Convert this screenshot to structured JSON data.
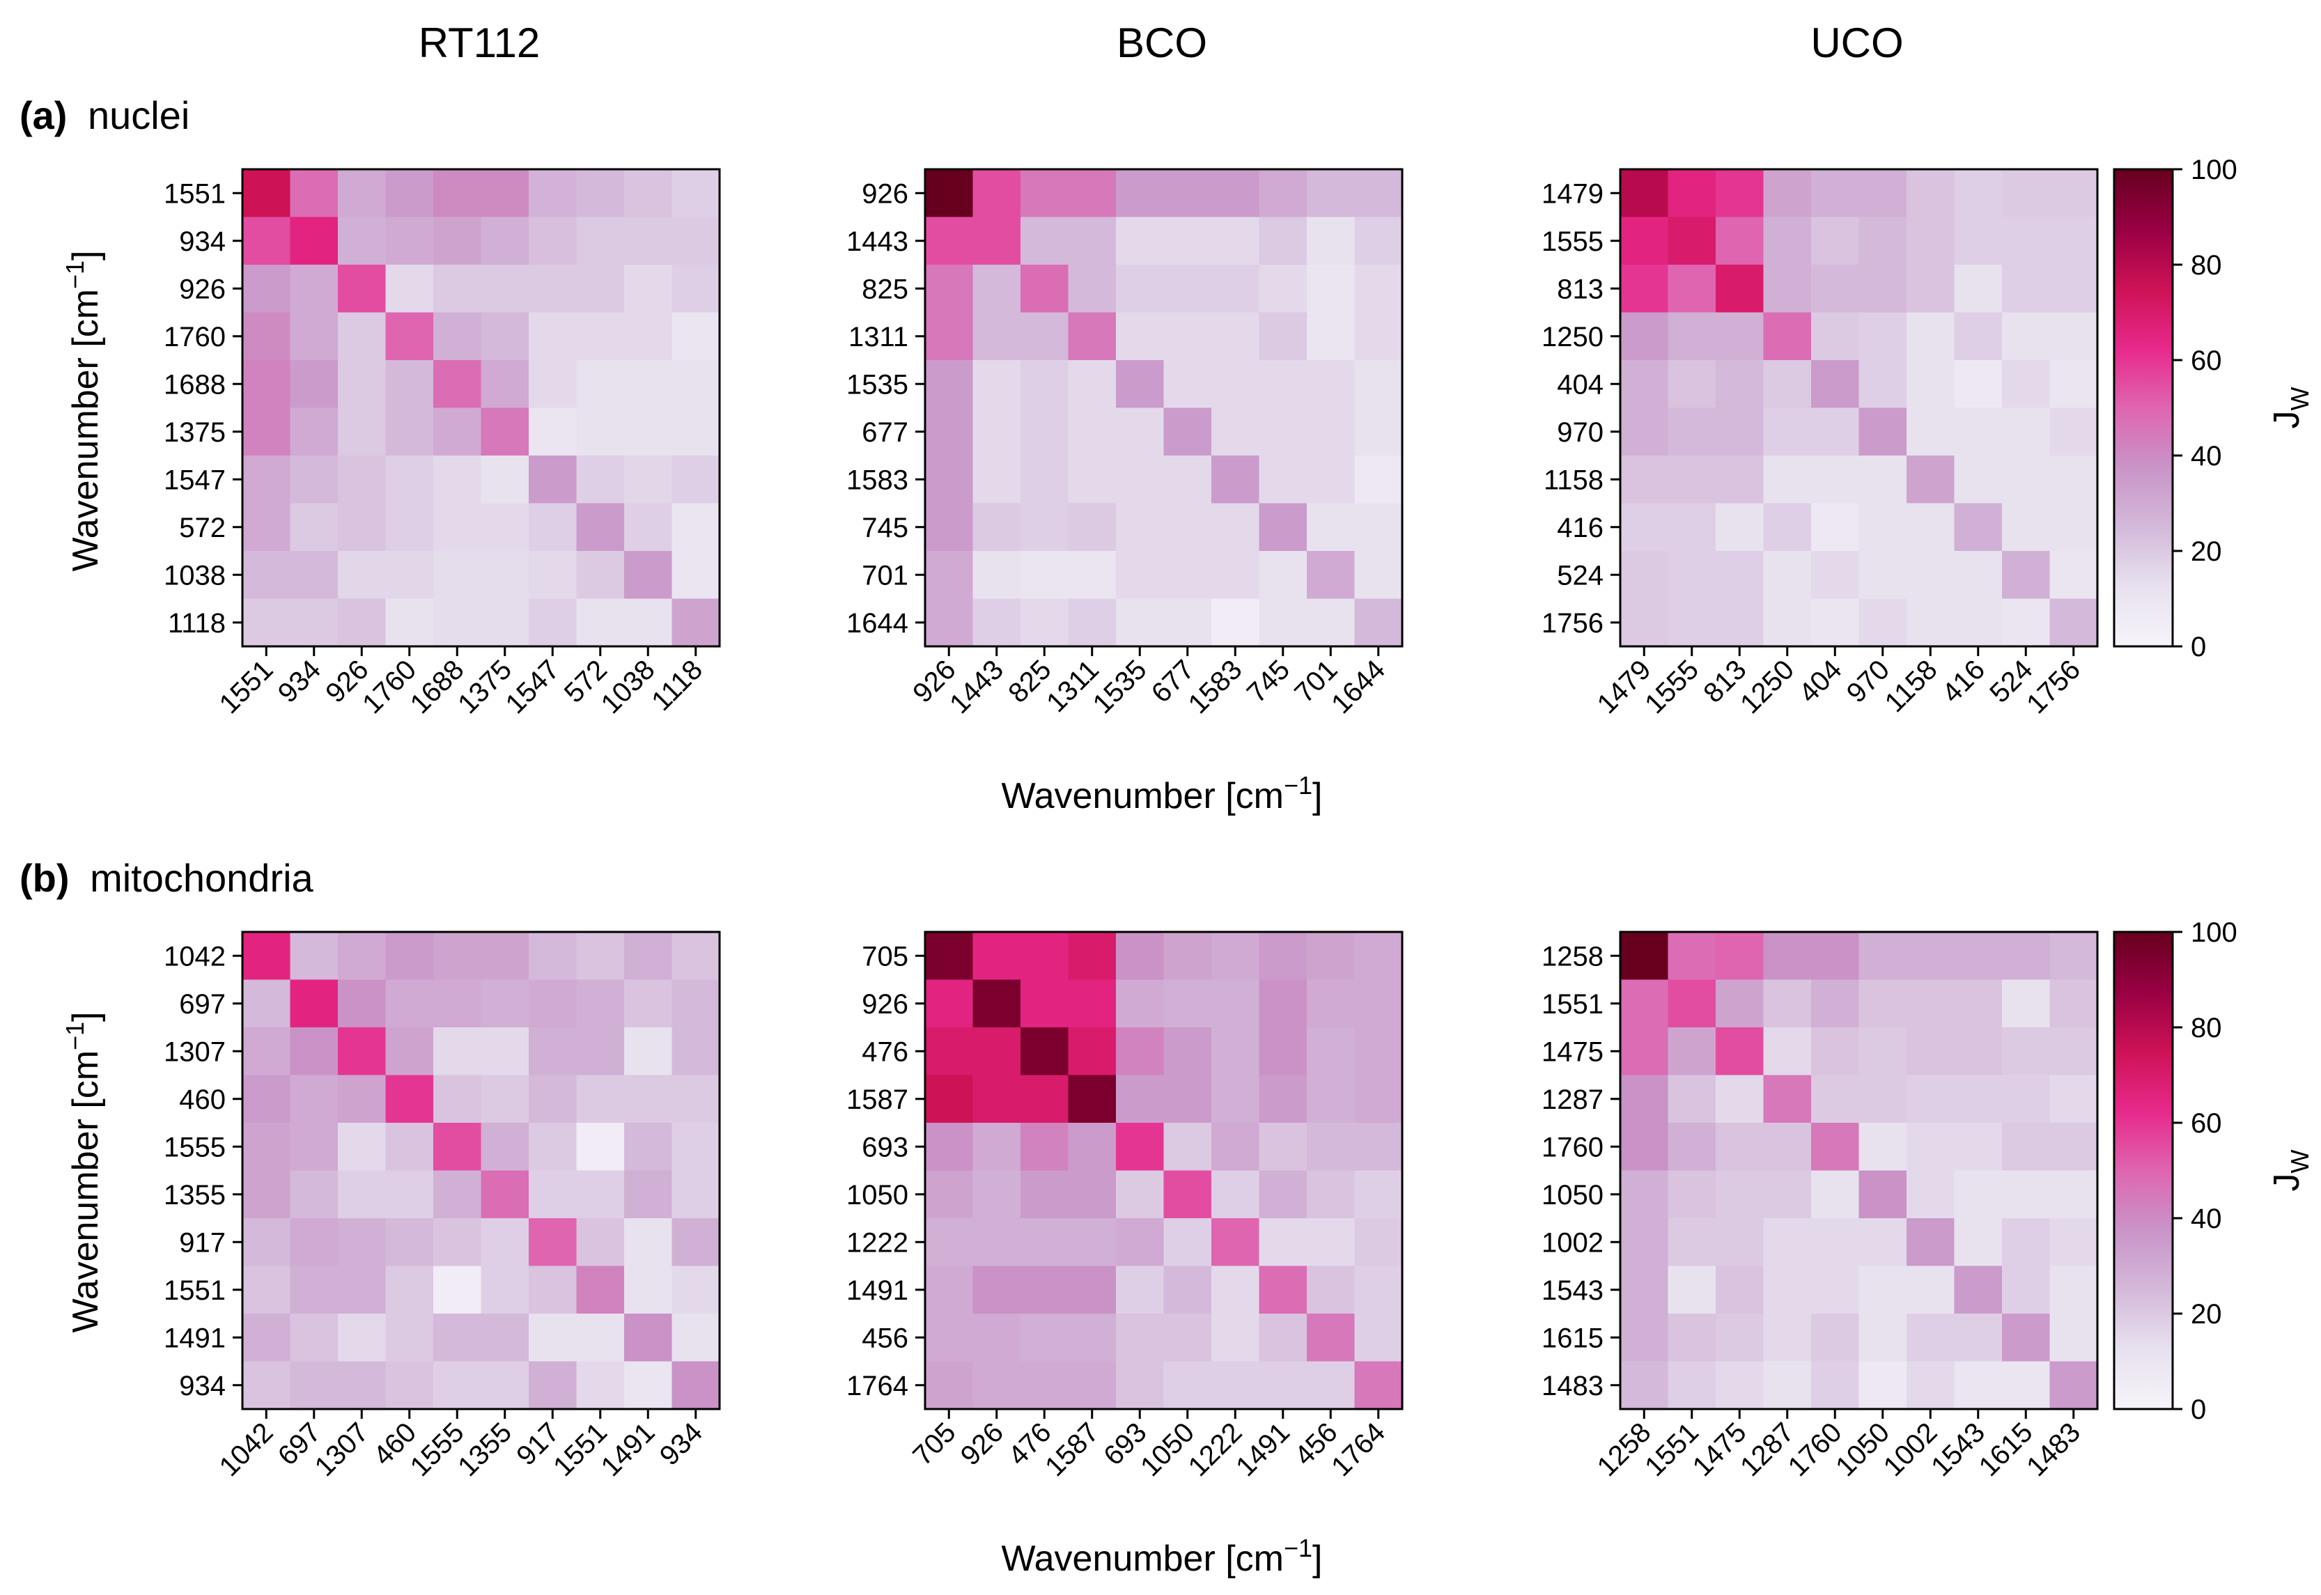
{
  "figure": {
    "column_titles": [
      "RT112",
      "BCO",
      "UCO"
    ],
    "row_titles": [
      {
        "letter": "(a)",
        "text": "nuclei"
      },
      {
        "letter": "(b)",
        "text": "mitochondria"
      }
    ],
    "axis_label_main": "Wavenumber [cm",
    "axis_label_sup": "−1",
    "axis_label_end": "]",
    "colorbar_label": "J",
    "colorbar_label_sub": "W",
    "colorbar_ticks": [
      "0",
      "20",
      "40",
      "60",
      "80",
      "100"
    ],
    "colors": {
      "low": "#f7f4f9",
      "mid1": "#d4b9da",
      "mid2": "#df65b0",
      "mid3": "#e7298a",
      "high": "#67001f"
    }
  },
  "chart_data": [
    {
      "type": "heatmap",
      "panel": "a",
      "title": "RT112",
      "xlabel": "",
      "ylabel": "Wavenumber [cm−1]",
      "vmin": 0,
      "vmax": 100,
      "labels": [
        "1551",
        "934",
        "926",
        "1760",
        "1688",
        "1375",
        "1547",
        "572",
        "1038",
        "1118"
      ],
      "values": [
        [
          75,
          48,
          30,
          35,
          40,
          40,
          27,
          25,
          22,
          18
        ],
        [
          55,
          65,
          28,
          30,
          32,
          28,
          23,
          20,
          20,
          20
        ],
        [
          35,
          30,
          55,
          15,
          20,
          20,
          20,
          20,
          15,
          18
        ],
        [
          40,
          30,
          20,
          50,
          28,
          25,
          15,
          15,
          15,
          10
        ],
        [
          42,
          35,
          20,
          25,
          48,
          30,
          15,
          12,
          12,
          12
        ],
        [
          42,
          30,
          20,
          25,
          30,
          45,
          10,
          12,
          12,
          12
        ],
        [
          30,
          25,
          22,
          18,
          15,
          12,
          35,
          18,
          16,
          18
        ],
        [
          30,
          20,
          22,
          18,
          15,
          15,
          18,
          35,
          18,
          10
        ],
        [
          25,
          25,
          16,
          16,
          14,
          14,
          15,
          20,
          35,
          10
        ],
        [
          20,
          20,
          22,
          12,
          14,
          14,
          18,
          12,
          12,
          32
        ]
      ]
    },
    {
      "type": "heatmap",
      "panel": "a",
      "title": "BCO",
      "xlabel": "Wavenumber [cm−1]",
      "ylabel": "",
      "vmin": 0,
      "vmax": 100,
      "labels": [
        "926",
        "1443",
        "825",
        "1311",
        "1535",
        "677",
        "1583",
        "745",
        "701",
        "1644"
      ],
      "values": [
        [
          100,
          55,
          45,
          45,
          35,
          35,
          35,
          30,
          25,
          25
        ],
        [
          55,
          55,
          25,
          25,
          15,
          15,
          15,
          20,
          12,
          18
        ],
        [
          45,
          25,
          48,
          25,
          18,
          18,
          18,
          15,
          10,
          15
        ],
        [
          45,
          25,
          25,
          45,
          15,
          15,
          15,
          20,
          10,
          15
        ],
        [
          35,
          15,
          18,
          15,
          35,
          15,
          15,
          15,
          15,
          12
        ],
        [
          35,
          15,
          18,
          15,
          15,
          35,
          15,
          15,
          15,
          12
        ],
        [
          35,
          15,
          18,
          15,
          15,
          15,
          35,
          15,
          15,
          8
        ],
        [
          35,
          20,
          18,
          20,
          15,
          15,
          15,
          35,
          12,
          12
        ],
        [
          30,
          12,
          10,
          10,
          15,
          15,
          15,
          12,
          30,
          12
        ],
        [
          30,
          18,
          15,
          18,
          12,
          12,
          5,
          12,
          12,
          25
        ]
      ]
    },
    {
      "type": "heatmap",
      "panel": "a",
      "title": "UCO",
      "xlabel": "",
      "ylabel": "",
      "vmin": 0,
      "vmax": 100,
      "labels": [
        "1479",
        "1555",
        "813",
        "1250",
        "404",
        "970",
        "1158",
        "416",
        "524",
        "1756"
      ],
      "values": [
        [
          80,
          65,
          60,
          32,
          28,
          28,
          22,
          18,
          20,
          20
        ],
        [
          65,
          70,
          50,
          28,
          22,
          25,
          22,
          18,
          18,
          18
        ],
        [
          60,
          50,
          70,
          28,
          25,
          25,
          22,
          12,
          18,
          18
        ],
        [
          35,
          28,
          28,
          48,
          20,
          18,
          12,
          18,
          12,
          12
        ],
        [
          28,
          22,
          25,
          20,
          35,
          18,
          12,
          8,
          15,
          10
        ],
        [
          28,
          25,
          25,
          18,
          18,
          35,
          12,
          12,
          12,
          15
        ],
        [
          22,
          22,
          22,
          12,
          12,
          12,
          32,
          12,
          12,
          12
        ],
        [
          18,
          18,
          12,
          18,
          8,
          12,
          12,
          28,
          12,
          12
        ],
        [
          20,
          18,
          18,
          12,
          15,
          12,
          12,
          12,
          28,
          10
        ],
        [
          20,
          18,
          18,
          12,
          10,
          15,
          12,
          12,
          10,
          25
        ]
      ]
    },
    {
      "type": "heatmap",
      "panel": "b",
      "title": "RT112",
      "xlabel": "",
      "ylabel": "Wavenumber [cm−1]",
      "vmin": 0,
      "vmax": 100,
      "labels": [
        "1042",
        "697",
        "1307",
        "460",
        "1555",
        "1355",
        "917",
        "1551",
        "1491",
        "934"
      ],
      "values": [
        [
          65,
          25,
          30,
          35,
          32,
          32,
          25,
          22,
          28,
          22
        ],
        [
          25,
          65,
          38,
          30,
          30,
          28,
          30,
          28,
          22,
          25
        ],
        [
          30,
          38,
          60,
          32,
          15,
          15,
          28,
          28,
          12,
          25
        ],
        [
          35,
          30,
          32,
          60,
          22,
          20,
          25,
          20,
          20,
          20
        ],
        [
          32,
          30,
          15,
          22,
          55,
          28,
          20,
          5,
          25,
          18
        ],
        [
          32,
          25,
          18,
          18,
          28,
          48,
          18,
          18,
          28,
          18
        ],
        [
          25,
          30,
          28,
          25,
          22,
          18,
          50,
          22,
          12,
          28
        ],
        [
          22,
          28,
          28,
          20,
          5,
          18,
          22,
          42,
          12,
          15
        ],
        [
          28,
          22,
          15,
          20,
          25,
          25,
          12,
          12,
          38,
          12
        ],
        [
          22,
          25,
          25,
          22,
          18,
          18,
          28,
          15,
          10,
          38
        ]
      ]
    },
    {
      "type": "heatmap",
      "panel": "b",
      "title": "BCO",
      "xlabel": "Wavenumber [cm−1]",
      "ylabel": "",
      "vmin": 0,
      "vmax": 100,
      "labels": [
        "705",
        "926",
        "476",
        "1587",
        "693",
        "1050",
        "1222",
        "1491",
        "456",
        "1764"
      ],
      "values": [
        [
          95,
          65,
          65,
          70,
          38,
          32,
          30,
          35,
          32,
          30
        ],
        [
          65,
          95,
          65,
          65,
          30,
          28,
          28,
          38,
          30,
          30
        ],
        [
          70,
          70,
          95,
          70,
          42,
          35,
          28,
          38,
          28,
          30
        ],
        [
          75,
          70,
          70,
          95,
          35,
          35,
          28,
          35,
          28,
          30
        ],
        [
          38,
          30,
          42,
          35,
          60,
          20,
          30,
          22,
          25,
          25
        ],
        [
          32,
          28,
          35,
          35,
          20,
          55,
          18,
          28,
          22,
          18
        ],
        [
          28,
          28,
          28,
          28,
          30,
          18,
          50,
          15,
          15,
          20
        ],
        [
          30,
          38,
          38,
          38,
          18,
          25,
          15,
          48,
          22,
          18
        ],
        [
          30,
          30,
          28,
          28,
          22,
          22,
          15,
          22,
          45,
          18
        ],
        [
          32,
          30,
          30,
          30,
          22,
          18,
          18,
          18,
          18,
          45
        ]
      ]
    },
    {
      "type": "heatmap",
      "panel": "b",
      "title": "UCO",
      "xlabel": "",
      "ylabel": "",
      "vmin": 0,
      "vmax": 100,
      "labels": [
        "1258",
        "1551",
        "1475",
        "1287",
        "1760",
        "1050",
        "1002",
        "1543",
        "1615",
        "1483"
      ],
      "values": [
        [
          100,
          48,
          50,
          38,
          38,
          28,
          28,
          28,
          28,
          25
        ],
        [
          48,
          55,
          32,
          22,
          28,
          22,
          22,
          22,
          12,
          22
        ],
        [
          48,
          32,
          55,
          15,
          22,
          20,
          22,
          22,
          20,
          20
        ],
        [
          38,
          22,
          15,
          45,
          20,
          20,
          18,
          18,
          18,
          15
        ],
        [
          38,
          28,
          22,
          22,
          45,
          12,
          15,
          15,
          20,
          20
        ],
        [
          28,
          22,
          20,
          20,
          12,
          38,
          15,
          12,
          12,
          12
        ],
        [
          28,
          20,
          20,
          15,
          15,
          15,
          35,
          12,
          18,
          15
        ],
        [
          28,
          12,
          22,
          15,
          15,
          12,
          12,
          35,
          18,
          12
        ],
        [
          28,
          22,
          20,
          15,
          20,
          12,
          18,
          18,
          35,
          12
        ],
        [
          25,
          18,
          15,
          12,
          18,
          8,
          15,
          10,
          10,
          35
        ]
      ]
    }
  ]
}
